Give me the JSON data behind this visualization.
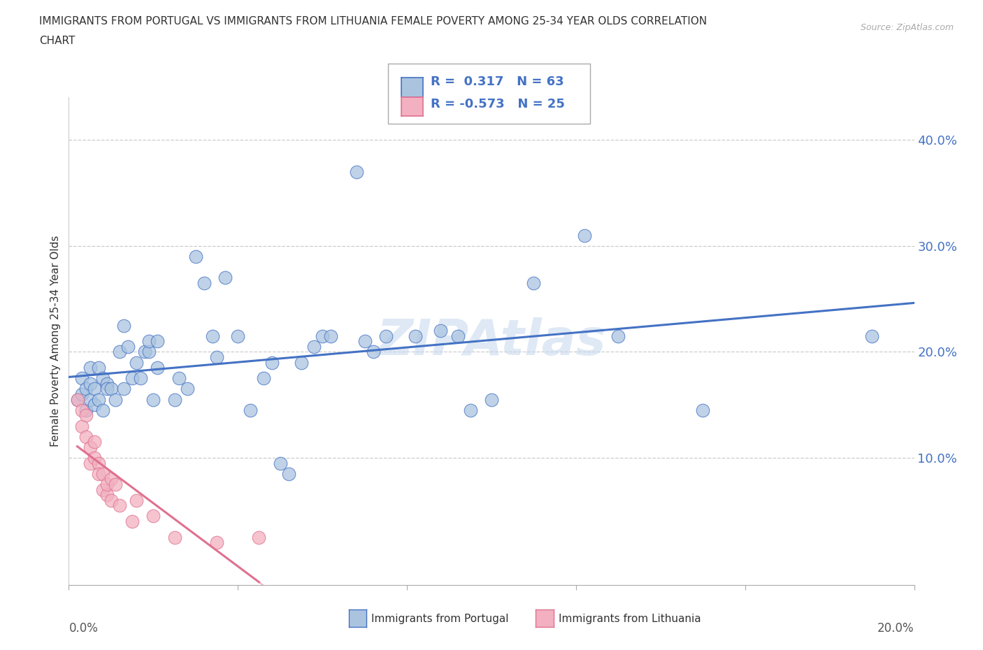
{
  "title_line1": "IMMIGRANTS FROM PORTUGAL VS IMMIGRANTS FROM LITHUANIA FEMALE POVERTY AMONG 25-34 YEAR OLDS CORRELATION",
  "title_line2": "CHART",
  "source": "Source: ZipAtlas.com",
  "ylabel": "Female Poverty Among 25-34 Year Olds",
  "yticks": [
    "10.0%",
    "20.0%",
    "30.0%",
    "40.0%"
  ],
  "ytick_vals": [
    0.1,
    0.2,
    0.3,
    0.4
  ],
  "xlim": [
    0.0,
    0.2
  ],
  "ylim": [
    -0.02,
    0.44
  ],
  "color_portugal": "#aac4e0",
  "color_lithuania": "#f2b0c0",
  "line_color_portugal": "#4472c4",
  "line_color_lithuania": "#e07090",
  "portugal_points": [
    [
      0.002,
      0.155
    ],
    [
      0.003,
      0.175
    ],
    [
      0.003,
      0.16
    ],
    [
      0.004,
      0.145
    ],
    [
      0.004,
      0.165
    ],
    [
      0.005,
      0.155
    ],
    [
      0.005,
      0.17
    ],
    [
      0.005,
      0.185
    ],
    [
      0.006,
      0.15
    ],
    [
      0.006,
      0.165
    ],
    [
      0.007,
      0.155
    ],
    [
      0.007,
      0.185
    ],
    [
      0.008,
      0.175
    ],
    [
      0.008,
      0.145
    ],
    [
      0.009,
      0.17
    ],
    [
      0.009,
      0.165
    ],
    [
      0.01,
      0.165
    ],
    [
      0.011,
      0.155
    ],
    [
      0.012,
      0.2
    ],
    [
      0.013,
      0.165
    ],
    [
      0.013,
      0.225
    ],
    [
      0.014,
      0.205
    ],
    [
      0.015,
      0.175
    ],
    [
      0.016,
      0.19
    ],
    [
      0.017,
      0.175
    ],
    [
      0.018,
      0.2
    ],
    [
      0.019,
      0.2
    ],
    [
      0.019,
      0.21
    ],
    [
      0.02,
      0.155
    ],
    [
      0.021,
      0.21
    ],
    [
      0.021,
      0.185
    ],
    [
      0.025,
      0.155
    ],
    [
      0.026,
      0.175
    ],
    [
      0.028,
      0.165
    ],
    [
      0.03,
      0.29
    ],
    [
      0.032,
      0.265
    ],
    [
      0.034,
      0.215
    ],
    [
      0.035,
      0.195
    ],
    [
      0.037,
      0.27
    ],
    [
      0.04,
      0.215
    ],
    [
      0.043,
      0.145
    ],
    [
      0.046,
      0.175
    ],
    [
      0.048,
      0.19
    ],
    [
      0.05,
      0.095
    ],
    [
      0.052,
      0.085
    ],
    [
      0.055,
      0.19
    ],
    [
      0.058,
      0.205
    ],
    [
      0.06,
      0.215
    ],
    [
      0.062,
      0.215
    ],
    [
      0.068,
      0.37
    ],
    [
      0.07,
      0.21
    ],
    [
      0.072,
      0.2
    ],
    [
      0.075,
      0.215
    ],
    [
      0.082,
      0.215
    ],
    [
      0.088,
      0.22
    ],
    [
      0.092,
      0.215
    ],
    [
      0.095,
      0.145
    ],
    [
      0.1,
      0.155
    ],
    [
      0.11,
      0.265
    ],
    [
      0.122,
      0.31
    ],
    [
      0.13,
      0.215
    ],
    [
      0.15,
      0.145
    ],
    [
      0.19,
      0.215
    ]
  ],
  "lithuania_points": [
    [
      0.002,
      0.155
    ],
    [
      0.003,
      0.13
    ],
    [
      0.003,
      0.145
    ],
    [
      0.004,
      0.12
    ],
    [
      0.004,
      0.14
    ],
    [
      0.005,
      0.11
    ],
    [
      0.005,
      0.095
    ],
    [
      0.006,
      0.115
    ],
    [
      0.006,
      0.1
    ],
    [
      0.007,
      0.095
    ],
    [
      0.007,
      0.085
    ],
    [
      0.008,
      0.085
    ],
    [
      0.008,
      0.07
    ],
    [
      0.009,
      0.065
    ],
    [
      0.009,
      0.075
    ],
    [
      0.01,
      0.06
    ],
    [
      0.01,
      0.08
    ],
    [
      0.011,
      0.075
    ],
    [
      0.012,
      0.055
    ],
    [
      0.015,
      0.04
    ],
    [
      0.016,
      0.06
    ],
    [
      0.02,
      0.045
    ],
    [
      0.025,
      0.025
    ],
    [
      0.035,
      0.02
    ],
    [
      0.045,
      0.025
    ]
  ]
}
